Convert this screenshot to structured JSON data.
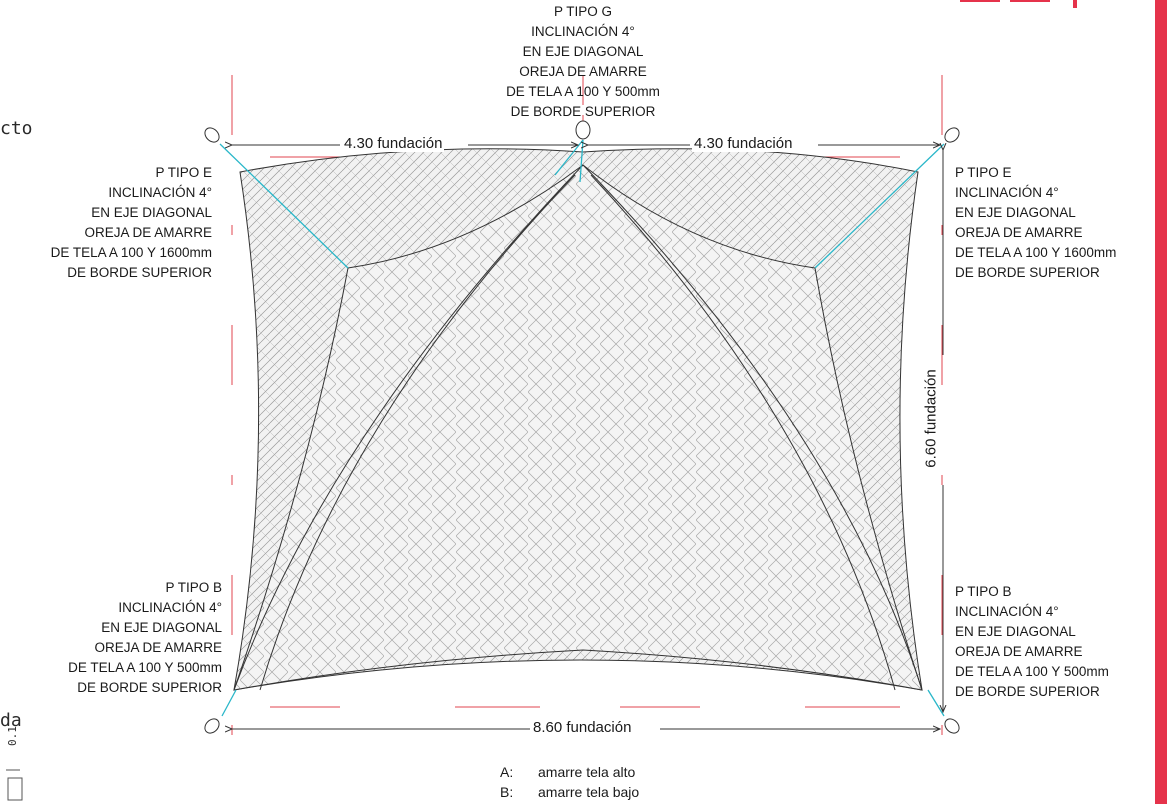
{
  "labels": {
    "top": [
      "P TIPO G",
      "INCLINACIÓN 4°",
      "EN EJE DIAGONAL",
      "OREJA DE AMARRE",
      "DE TELA A 100 Y 500mm",
      "DE BORDE SUPERIOR"
    ],
    "top_left": [
      "P TIPO E",
      "INCLINACIÓN 4°",
      "EN EJE DIAGONAL",
      "OREJA DE AMARRE",
      "DE TELA A 100 Y 1600mm",
      "DE BORDE SUPERIOR"
    ],
    "top_right": [
      "P TIPO E",
      "INCLINACIÓN 4°",
      "EN EJE DIAGONAL",
      "OREJA DE AMARRE",
      "DE TELA A 100 Y 1600mm",
      "DE BORDE SUPERIOR"
    ],
    "bottom_left": [
      "P TIPO B",
      "INCLINACIÓN 4°",
      "EN EJE DIAGONAL",
      "OREJA DE AMARRE",
      "DE TELA A 100 Y 500mm",
      "DE BORDE SUPERIOR"
    ],
    "bottom_right": [
      "P TIPO B",
      "INCLINACIÓN 4°",
      "EN EJE DIAGONAL",
      "OREJA DE AMARRE",
      "DE TELA A 100 Y 500mm",
      "DE BORDE SUPERIOR"
    ]
  },
  "dimensions": {
    "top_left": "4.30 fundación",
    "top_right": "4.30 fundación",
    "right": "6.60 fundación",
    "bottom": "8.60 fundación"
  },
  "legend": [
    {
      "key": "A:",
      "text": "amarre tela alto"
    },
    {
      "key": "B:",
      "text": "amarre tela bajo"
    }
  ],
  "fragments": {
    "left_top": "cto",
    "left_bottom": "da",
    "left_scale": "0.1"
  },
  "colors": {
    "accent_red": "#e5334b",
    "cable_cyan": "#2ab7c9",
    "dim_red": "#e0454f",
    "line": "#333333"
  }
}
